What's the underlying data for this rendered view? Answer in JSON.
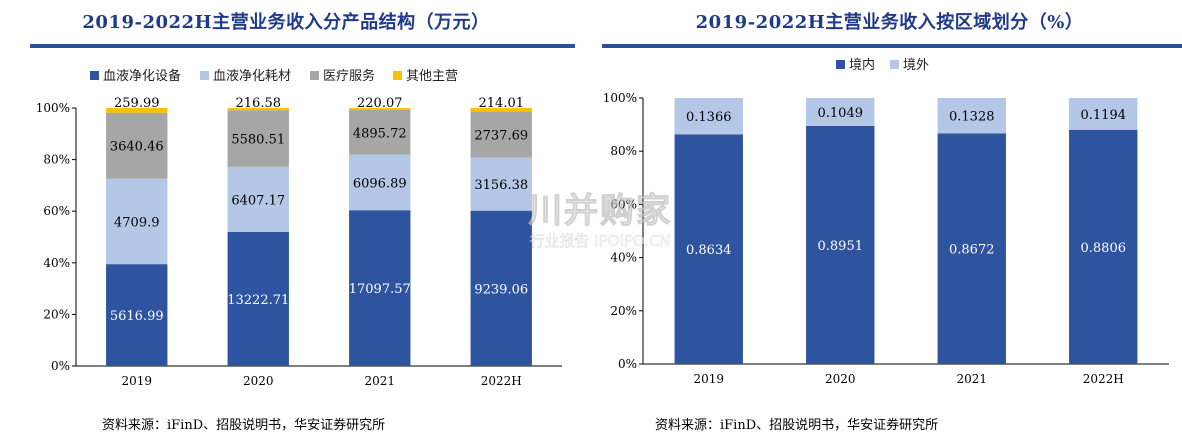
{
  "left": {
    "title": "2019-2022H主营业务收入分产品结构（万元）",
    "source": "资料来源：iFinD、招股说明书，华安证券研究所"
  },
  "right": {
    "title": "2019-2022H主营业务收入按区域划分（%）",
    "source": "资料来源：iFinD、招股说明书，华安证券研究所"
  },
  "watermark": {
    "main": "川并购家",
    "sub": "行业报告 IPOIPO.CN"
  },
  "chart_data": [
    {
      "type": "bar",
      "stacked": true,
      "normalized": true,
      "title": "2019-2022H主营业务收入分产品结构（万元）",
      "categories": [
        "2019",
        "2020",
        "2021",
        "2022H"
      ],
      "yticks": [
        "0%",
        "20%",
        "40%",
        "60%",
        "80%",
        "100%"
      ],
      "ylim": [
        0,
        100
      ],
      "legend_position": "top",
      "series": [
        {
          "name": "血液净化设备",
          "color": "#2e54a0",
          "label_color": "#ffffff",
          "values": [
            5616.99,
            13222.71,
            17097.57,
            9239.06
          ],
          "labels": [
            "5616.99",
            "13222.71",
            "17097.57",
            "9239.06"
          ]
        },
        {
          "name": "血液净化耗材",
          "color": "#b4c7e7",
          "label_color": "#000000",
          "values": [
            4709.9,
            6407.17,
            6096.89,
            3156.38
          ],
          "labels": [
            "4709.9",
            "6407.17",
            "6096.89",
            "3156.38"
          ]
        },
        {
          "name": "医疗服务",
          "color": "#a6a6a6",
          "label_color": "#000000",
          "values": [
            3640.46,
            5580.51,
            4895.72,
            2737.69
          ],
          "labels": [
            "3640.46",
            "5580.51",
            "4895.72",
            "2737.69"
          ]
        },
        {
          "name": "其他主营",
          "color": "#ffc000",
          "label_color": "#000000",
          "values": [
            259.99,
            216.58,
            220.07,
            214.01
          ],
          "labels": [
            "259.99",
            "216.58",
            "220.07",
            "214.01"
          ]
        }
      ]
    },
    {
      "type": "bar",
      "stacked": true,
      "normalized": true,
      "title": "2019-2022H主营业务收入按区域划分（%）",
      "categories": [
        "2019",
        "2020",
        "2021",
        "2022H"
      ],
      "yticks": [
        "0%",
        "20%",
        "40%",
        "60%",
        "80%",
        "100%"
      ],
      "ylim": [
        0,
        100
      ],
      "legend_position": "top",
      "series": [
        {
          "name": "境内",
          "color": "#2e54a0",
          "label_color": "#ffffff",
          "values": [
            0.8634,
            0.8951,
            0.8672,
            0.8806
          ],
          "labels": [
            "0.8634",
            "0.8951",
            "0.8672",
            "0.8806"
          ]
        },
        {
          "name": "境外",
          "color": "#b4c7e7",
          "label_color": "#000000",
          "values": [
            0.1366,
            0.1049,
            0.1328,
            0.1194
          ],
          "labels": [
            "0.1366",
            "0.1049",
            "0.1328",
            "0.1194"
          ]
        }
      ]
    }
  ]
}
